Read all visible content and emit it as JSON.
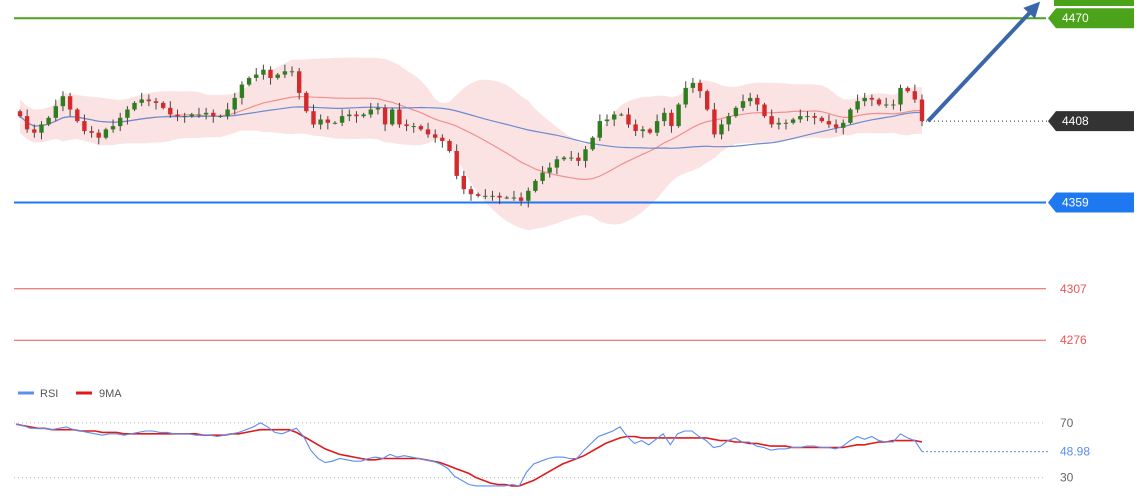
{
  "chart_data": {
    "type": "candlestick",
    "price_axis": {
      "min": 4240,
      "max": 4490
    },
    "levels": [
      {
        "name": "resistance-2",
        "value": 4470,
        "label": "4470",
        "color": "#4aa31a",
        "style": "solid"
      },
      {
        "name": "current-price",
        "value": 4408,
        "label": "4408",
        "color": "#333333",
        "style": "dotted"
      },
      {
        "name": "pivot",
        "value": 4359,
        "label": "4359",
        "color": "#1e78f0",
        "style": "solid"
      },
      {
        "name": "support-1",
        "value": 4307,
        "label": "4307",
        "color": "#ee5555",
        "style": "solid"
      },
      {
        "name": "support-2",
        "value": 4276,
        "label": "4276",
        "color": "#ee5555",
        "style": "solid"
      }
    ],
    "top_target_color": "#4aa31a",
    "arrow_color": "#3a67a8",
    "candle_up_color": "#2e7d1e",
    "candle_down_color": "#d32b2b",
    "candles_close": [
      4411,
      4403,
      4401,
      4406,
      4410,
      4417,
      4423,
      4415,
      4408,
      4402,
      4401,
      4398,
      4403,
      4405,
      4410,
      4415,
      4419,
      4421,
      4420,
      4419,
      4416,
      4412,
      4411,
      4411,
      4412,
      4412,
      4413,
      4411,
      4411,
      4415,
      4422,
      4430,
      4434,
      4436,
      4439,
      4434,
      4436,
      4438,
      4438,
      4425,
      4414,
      4406,
      4409,
      4407,
      4407,
      4411,
      4412,
      4411,
      4412,
      4415,
      4416,
      4406,
      4415,
      4406,
      4405,
      4405,
      4403,
      4400,
      4398,
      4396,
      4390,
      4375,
      4367,
      4364,
      4363,
      4363,
      4363,
      4362,
      4362,
      4362,
      4360,
      4366,
      4372,
      4377,
      4380,
      4385,
      4386,
      4386,
      4384,
      4391,
      4398,
      4408,
      4409,
      4412,
      4412,
      4406,
      4402,
      4403,
      4401,
      4408,
      4413,
      4405,
      4418,
      4428,
      4431,
      4426,
      4415,
      4400,
      4406,
      4411,
      4416,
      4420,
      4422,
      4418,
      4411,
      4406,
      4407,
      4407,
      4409,
      4411,
      4411,
      4410,
      4408,
      4406,
      4404,
      4407,
      4415,
      4420,
      4422,
      4421,
      4418,
      4418,
      4418,
      4428,
      4426,
      4421,
      4408
    ],
    "rsi": {
      "label": "RSI",
      "color": "#5b8def",
      "values": [
        69,
        68,
        66,
        66,
        66,
        65,
        66,
        67,
        65,
        64,
        63,
        62,
        61,
        62,
        62,
        61,
        62,
        63,
        64,
        64,
        63,
        63,
        62,
        62,
        62,
        61,
        61,
        61,
        60,
        61,
        62,
        63,
        65,
        67,
        70,
        67,
        63,
        62,
        64,
        66,
        60,
        50,
        44,
        41,
        42,
        44,
        43,
        42,
        42,
        44,
        45,
        44,
        47,
        45,
        46,
        45,
        44,
        43,
        42,
        40,
        37,
        31,
        28,
        25,
        24,
        24,
        24,
        24,
        24,
        25,
        24,
        34,
        40,
        42,
        44,
        45,
        45,
        44,
        44,
        50,
        55,
        60,
        62,
        64,
        67,
        60,
        55,
        57,
        54,
        58,
        62,
        54,
        62,
        64,
        64,
        60,
        57,
        52,
        53,
        57,
        59,
        56,
        56,
        53,
        52,
        50,
        51,
        51,
        52,
        52,
        53,
        53,
        52,
        52,
        51,
        53,
        57,
        60,
        58,
        60,
        57,
        56,
        56,
        62,
        59,
        57,
        49
      ],
      "value_label": "48.98"
    },
    "ma9": {
      "label": "9MA",
      "color": "#e0191b",
      "values": [
        69,
        68,
        67,
        66,
        66,
        65,
        65,
        65,
        65,
        64,
        64,
        64,
        63,
        63,
        63,
        62,
        62,
        62,
        62,
        62,
        62,
        62,
        62,
        62,
        62,
        62,
        61,
        61,
        61,
        61,
        62,
        62,
        63,
        64,
        65,
        65,
        65,
        65,
        65,
        63,
        60,
        57,
        54,
        51,
        49,
        47,
        46,
        45,
        44,
        43,
        43,
        44,
        44,
        44,
        44,
        44,
        44,
        43,
        42,
        41,
        39,
        37,
        35,
        33,
        30,
        28,
        26,
        25,
        25,
        24,
        24,
        26,
        28,
        31,
        34,
        37,
        40,
        42,
        44,
        46,
        49,
        52,
        55,
        57,
        59,
        60,
        60,
        59,
        59,
        59,
        59,
        59,
        59,
        59,
        59,
        59,
        59,
        58,
        57,
        57,
        56,
        56,
        55,
        55,
        54,
        53,
        53,
        53,
        52,
        52,
        52,
        52,
        52,
        52,
        52,
        52,
        53,
        54,
        54,
        55,
        56,
        56,
        57,
        57,
        57,
        57,
        56
      ]
    },
    "rsi_axis": {
      "min": 21,
      "max": 83,
      "labels": [
        "70",
        "30"
      ]
    }
  },
  "legend": {
    "rsi_label": "RSI",
    "ma_label": "9MA"
  }
}
